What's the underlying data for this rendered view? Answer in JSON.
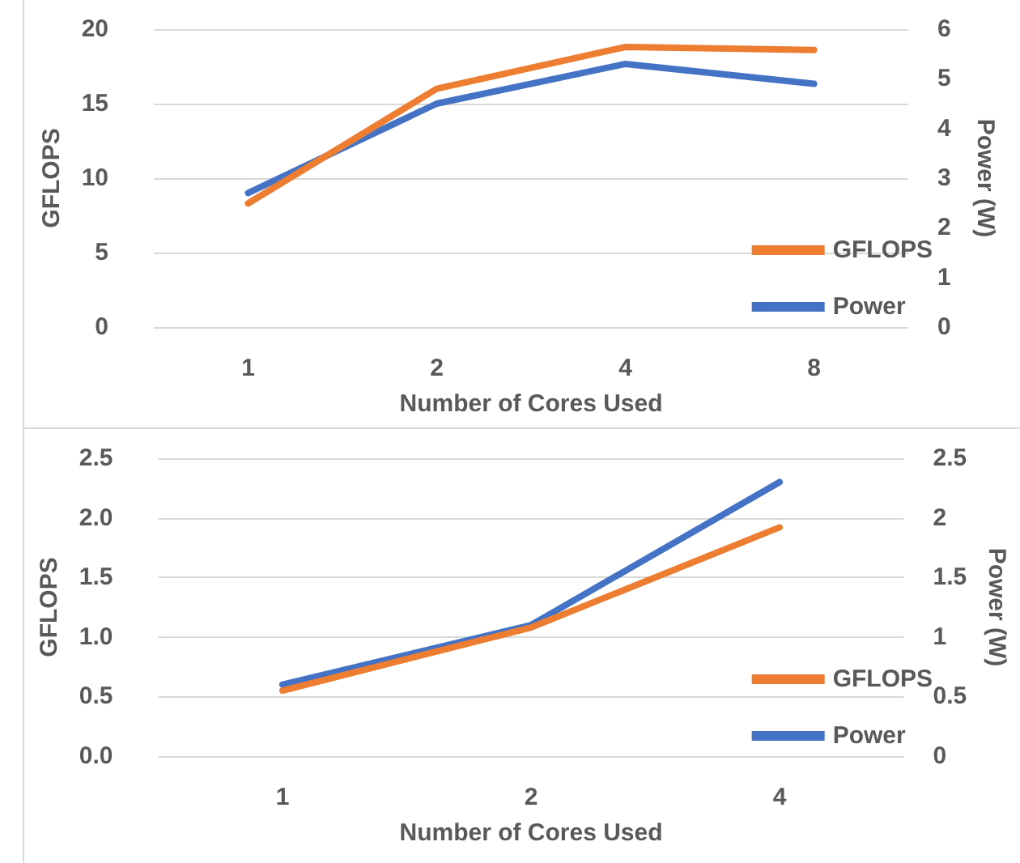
{
  "chart_data": [
    {
      "type": "line",
      "categories": [
        "1",
        "2",
        "4",
        "8"
      ],
      "xlabel": "Number of Cores Used",
      "ylabel": "GFLOPS",
      "y2label": "Power (W)",
      "series": [
        {
          "name": "GFLOPS",
          "color": "#ed7d31",
          "values": [
            8.3,
            16.0,
            18.8,
            18.6
          ]
        },
        {
          "name": "Power",
          "color": "#4472c4",
          "axis": "y2",
          "values": [
            2.7,
            4.5,
            5.3,
            4.9
          ]
        }
      ],
      "ylim": [
        0,
        20
      ],
      "yticks": [
        0,
        5,
        10,
        15,
        20
      ],
      "y2lim": [
        0,
        6
      ],
      "y2ticks": [
        0,
        1,
        2,
        3,
        4,
        5,
        6
      ],
      "grid": "y",
      "legend": "bottom right",
      "marker": "none",
      "line_style": "solid"
    },
    {
      "type": "line",
      "categories": [
        "1",
        "2",
        "4"
      ],
      "xlabel": "Number of Cores Used",
      "ylabel": "GFLOPS",
      "y2label": "Power (W)",
      "series": [
        {
          "name": "GFLOPS",
          "color": "#ed7d31",
          "values": [
            0.55,
            1.08,
            1.92
          ]
        },
        {
          "name": "Power",
          "color": "#4472c4",
          "axis": "y2",
          "values": [
            0.6,
            1.1,
            2.3
          ]
        }
      ],
      "ylim": [
        0,
        2.5
      ],
      "yticks": [
        {
          "value": 0,
          "label": "0.0"
        },
        0.5,
        {
          "value": 1,
          "label": "1.0"
        },
        1.5,
        {
          "value": 2,
          "label": "2.0"
        },
        2.5
      ],
      "y2lim": [
        0,
        2.5
      ],
      "y2ticks": [
        0,
        0.5,
        1,
        1.5,
        2,
        2.5
      ],
      "grid": "y",
      "legend": "bottom right",
      "marker": "none",
      "line_style": "solid"
    }
  ]
}
